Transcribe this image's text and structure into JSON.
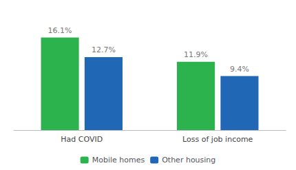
{
  "chart_data": {
    "type": "bar",
    "categories": [
      "Had COVID",
      "Loss of job income"
    ],
    "series": [
      {
        "name": "Mobile homes",
        "color": "#2db34e",
        "values": [
          16.1,
          11.9
        ],
        "value_labels": [
          "16.1%",
          "11.9%"
        ]
      },
      {
        "name": "Other housing",
        "color": "#2067b5",
        "values": [
          12.7,
          9.4
        ],
        "value_labels": [
          "12.7%",
          "9.4%"
        ]
      }
    ],
    "ylim": [
      0,
      20
    ],
    "grid": false,
    "legend": "bottom",
    "data_labels": true,
    "tick_labels": "x"
  }
}
